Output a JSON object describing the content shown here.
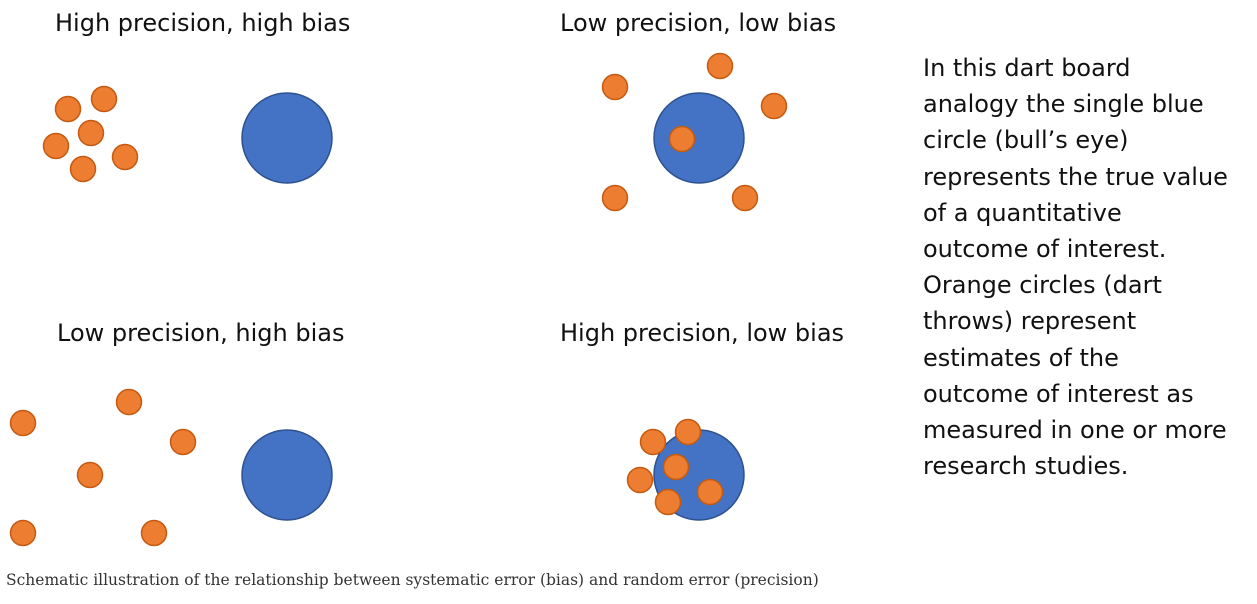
{
  "colors": {
    "bullseye_fill": "#4472C4",
    "bullseye_stroke": "#2F528F",
    "dart_fill": "#ED7D31",
    "dart_stroke": "#C55A11"
  },
  "panels": {
    "high_precision_high_bias": {
      "title": "High precision, high bias"
    },
    "low_precision_low_bias": {
      "title": "Low precision, low bias"
    },
    "low_precision_high_bias": {
      "title": "Low precision, high bias"
    },
    "high_precision_low_bias": {
      "title": "High precision, low bias"
    }
  },
  "explanation": {
    "lines": [
      "In this dart board",
      "analogy the single blue",
      "circle (bull’s eye)",
      "represents the true value",
      "of a quantitative",
      "outcome of interest.",
      "Orange circles (dart",
      "throws) represent",
      "estimates of the",
      "outcome of interest as",
      "measured in one or more",
      "research studies."
    ]
  },
  "caption": "Schematic illustration of the relationship between systematic error (bias) and random error (precision)"
}
